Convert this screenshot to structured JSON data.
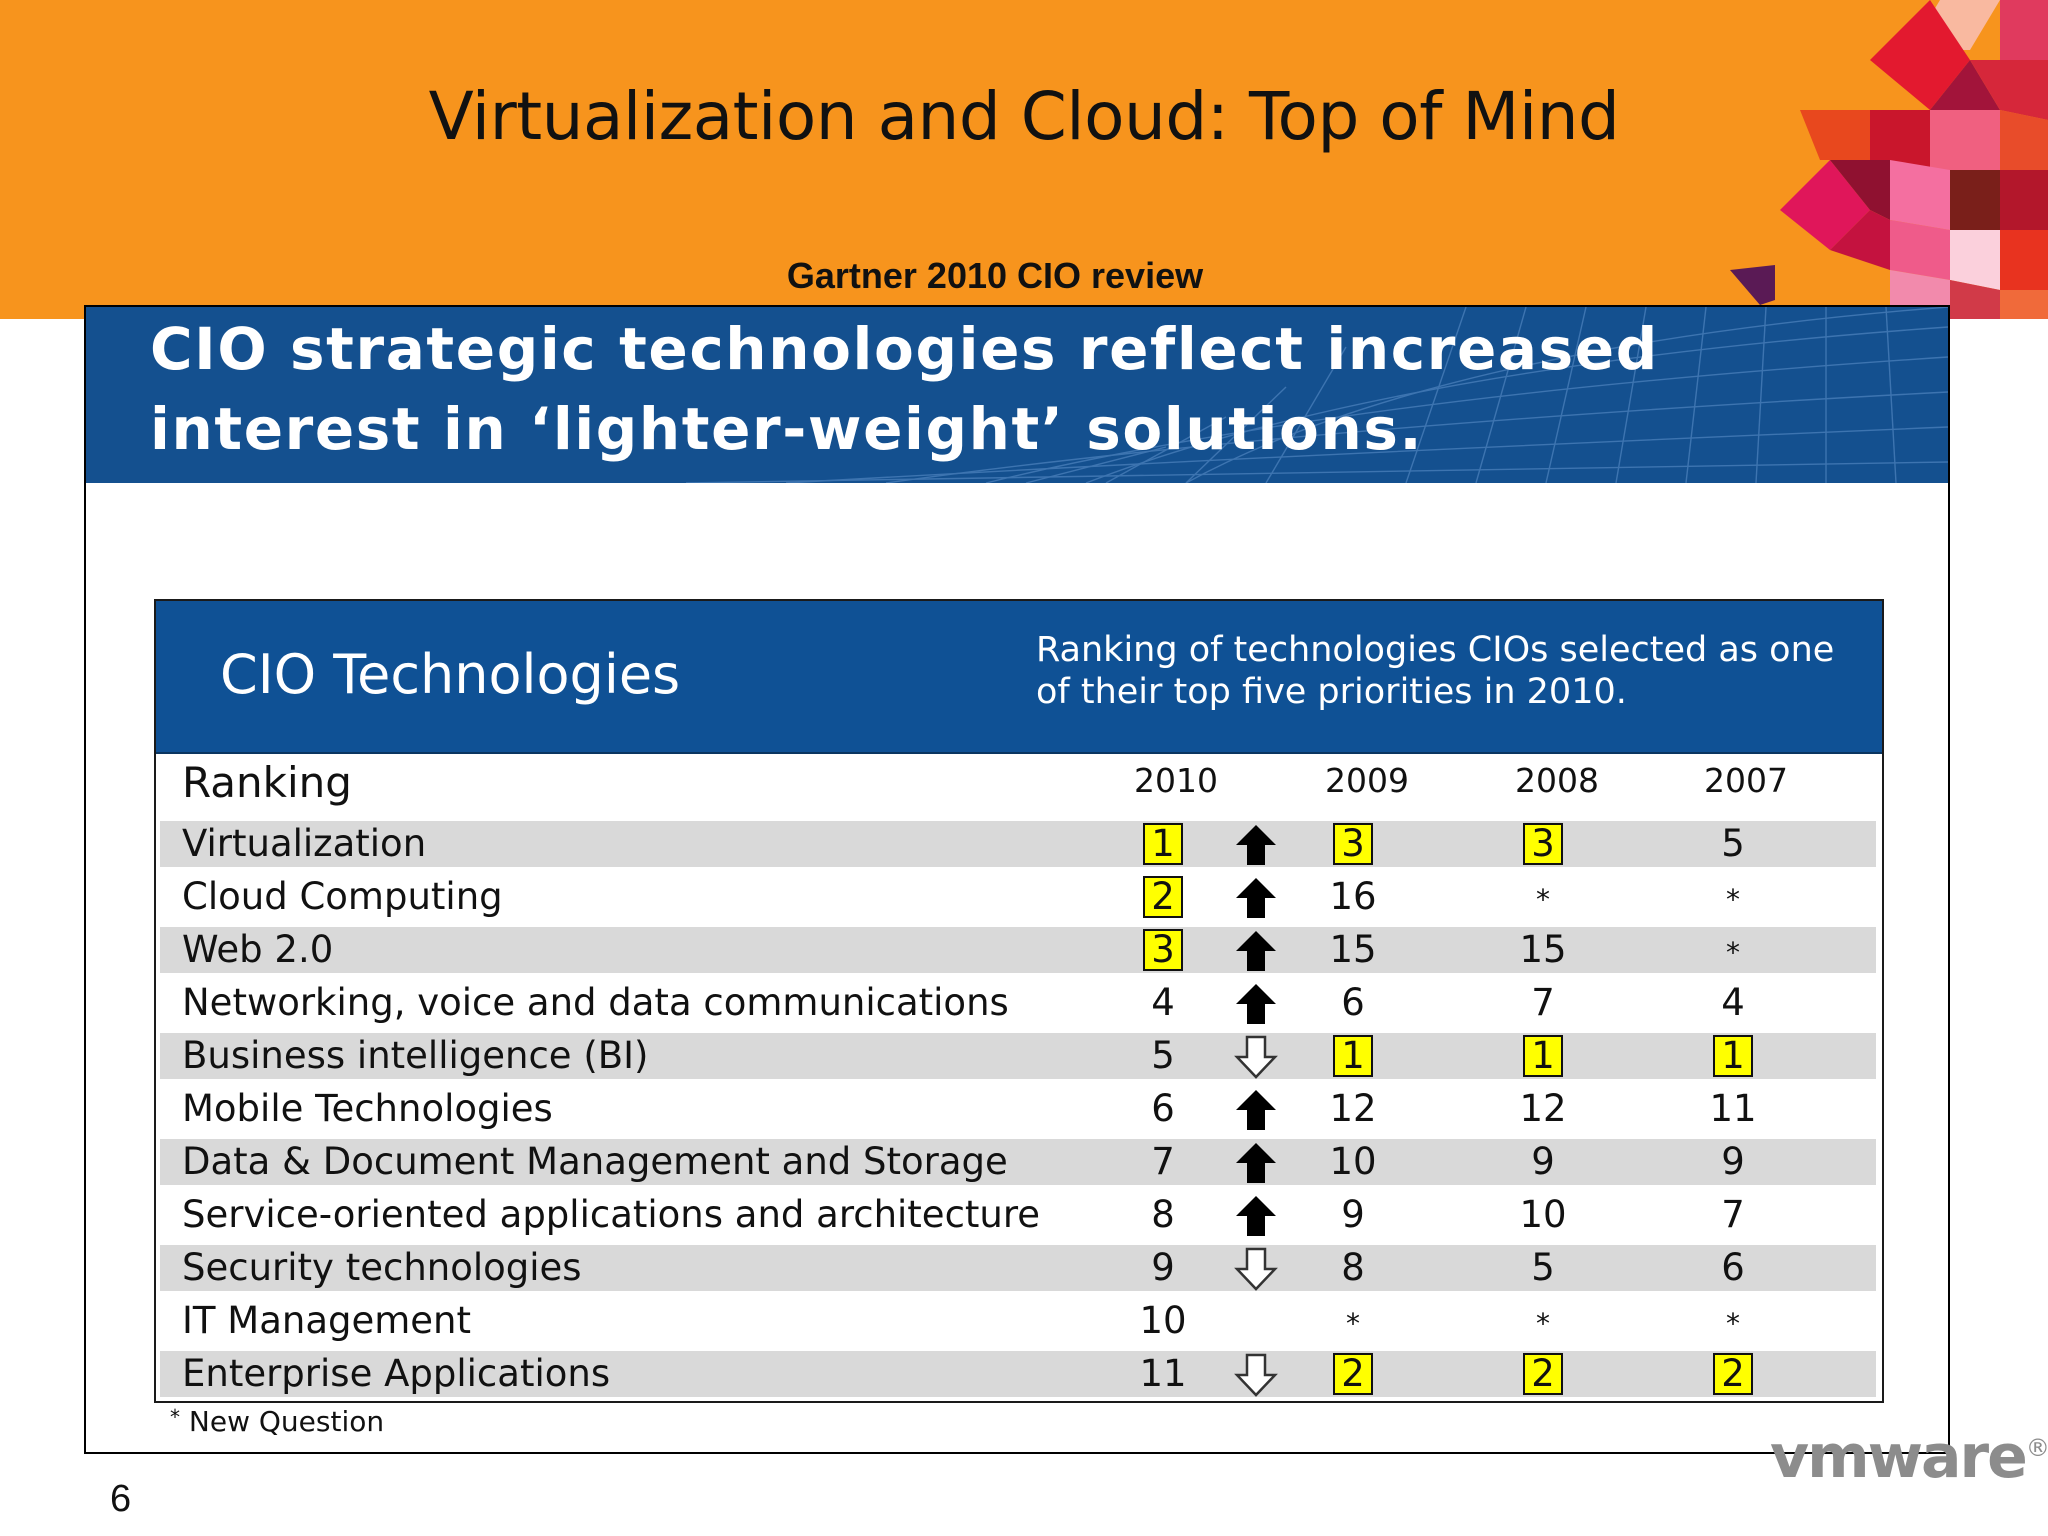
{
  "slide": {
    "title": "Virtualization and Cloud: Top of Mind",
    "subtitle": "Gartner 2010 CIO review",
    "page_number": "6",
    "logo_text": "vmware",
    "logo_mark": "®"
  },
  "banner": {
    "line1": "CIO strategic technologies reflect increased",
    "line2": "interest in ‘lighter-weight’ solutions."
  },
  "table": {
    "title": "CIO Technologies",
    "description": "Ranking of technologies CIOs selected as one of their top five priorities in 2010.",
    "row_header": "Ranking",
    "year_headers": [
      "2010",
      "2009",
      "2008",
      "2007"
    ],
    "rows": [
      {
        "name": "Virtualization",
        "y2010": "1",
        "trend": "up",
        "y2009": "3",
        "y2008": "3",
        "y2007": "5"
      },
      {
        "name": "Cloud Computing",
        "y2010": "2",
        "trend": "up",
        "y2009": "16",
        "y2008": "*",
        "y2007": "*"
      },
      {
        "name": "Web 2.0",
        "y2010": "3",
        "trend": "up",
        "y2009": "15",
        "y2008": "15",
        "y2007": "*"
      },
      {
        "name": "Networking, voice and data communications",
        "y2010": "4",
        "trend": "up",
        "y2009": "6",
        "y2008": "7",
        "y2007": "4"
      },
      {
        "name": "Business intelligence (BI)",
        "y2010": "5",
        "trend": "down",
        "y2009": "1",
        "y2008": "1",
        "y2007": "1"
      },
      {
        "name": "Mobile Technologies",
        "y2010": "6",
        "trend": "up",
        "y2009": "12",
        "y2008": "12",
        "y2007": "11"
      },
      {
        "name": "Data & Document Management and Storage",
        "y2010": "7",
        "trend": "up",
        "y2009": "10",
        "y2008": "9",
        "y2007": "9"
      },
      {
        "name": "Service-oriented applications and architecture",
        "y2010": "8",
        "trend": "up",
        "y2009": "9",
        "y2008": "10",
        "y2007": "7"
      },
      {
        "name": "Security technologies",
        "y2010": "9",
        "trend": "down",
        "y2009": "8",
        "y2008": "5",
        "y2007": "6"
      },
      {
        "name": "IT Management",
        "y2010": "10",
        "trend": "none",
        "y2009": "*",
        "y2008": "*",
        "y2007": "*"
      },
      {
        "name": "Enterprise Applications",
        "y2010": "11",
        "trend": "down",
        "y2009": "2",
        "y2008": "2",
        "y2007": "2"
      }
    ],
    "footnote_marker": "*",
    "footnote_text": "New Question"
  },
  "colors": {
    "band": "#f7941d",
    "banner": "#14508f",
    "table_header": "#0f5195",
    "highlight": "#ffff00",
    "row_shade": "#d9d9d9"
  }
}
